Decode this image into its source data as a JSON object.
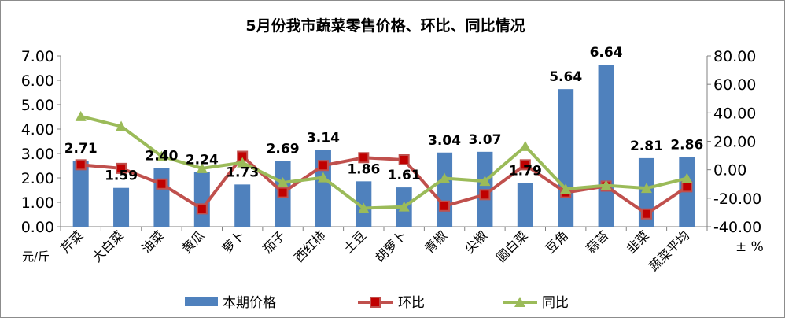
{
  "chart_data": {
    "type": "bar",
    "title": "5月份我市蔬菜零售价格、环比、同比情况",
    "categories": [
      "芹菜",
      "大白菜",
      "油菜",
      "黄瓜",
      "萝卜",
      "茄子",
      "西红柿",
      "土豆",
      "胡萝卜",
      "青椒",
      "尖椒",
      "圆白菜",
      "豆角",
      "蒜苔",
      "韭菜",
      "蔬菜平均"
    ],
    "left_axis": {
      "unit": "元/斤",
      "ylim": [
        0,
        7
      ],
      "ticks": [
        "0.00",
        "1.00",
        "2.00",
        "3.00",
        "4.00",
        "5.00",
        "6.00",
        "7.00"
      ]
    },
    "right_axis": {
      "unit": "± %",
      "ylim": [
        -40,
        80
      ],
      "ticks": [
        "-40.00",
        "-20.00",
        "0.00",
        "20.00",
        "40.00",
        "60.00",
        "80.00"
      ]
    },
    "series": [
      {
        "name": "本期价格",
        "type": "bar",
        "axis": "left",
        "color": "#4f81bd",
        "values": [
          2.71,
          1.59,
          2.4,
          2.24,
          1.73,
          2.69,
          3.14,
          1.86,
          1.61,
          3.04,
          3.07,
          1.79,
          5.64,
          6.64,
          2.81,
          2.86
        ],
        "labels": [
          "2.71",
          "1.59",
          "2.40",
          "2.24",
          "1.73",
          "2.69",
          "3.14",
          "1.86",
          "1.61",
          "3.04",
          "3.07",
          "1.79",
          "5.64",
          "6.64",
          "2.81",
          "2.86"
        ]
      },
      {
        "name": "环比",
        "type": "line",
        "axis": "right",
        "color": "#c0504d",
        "marker": "square",
        "values": [
          3.5,
          1.0,
          -10.0,
          -27.5,
          9.5,
          -16.0,
          3.0,
          8.5,
          7.0,
          -25.5,
          -17.5,
          3.5,
          -16.0,
          -11.5,
          -31.0,
          -12.0
        ]
      },
      {
        "name": "同比",
        "type": "line",
        "axis": "right",
        "color": "#9bbb59",
        "marker": "triangle",
        "values": [
          37.5,
          30.5,
          9.5,
          1.0,
          5.0,
          -9.0,
          -5.5,
          -27.0,
          -26.0,
          -6.0,
          -8.0,
          16.5,
          -13.5,
          -11.0,
          -13.0,
          -6.0
        ]
      }
    ],
    "legend_position": "bottom",
    "grid": false
  }
}
